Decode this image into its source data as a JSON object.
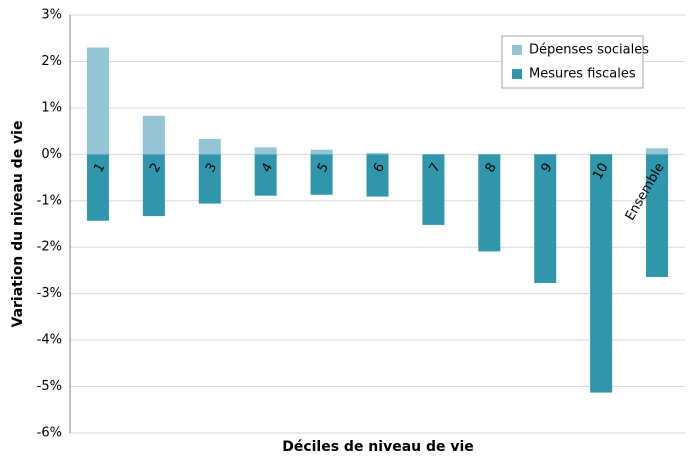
{
  "chart_data": {
    "type": "bar",
    "x_label": "Déciles de niveau de vie",
    "y_label": "Variation du niveau de vie",
    "categories": [
      "1",
      "2",
      "3",
      "4",
      "5",
      "6",
      "7",
      "8",
      "9",
      "10",
      "Ensemble"
    ],
    "series": [
      {
        "name": "Dépenses sociales",
        "color": "#93c5d6",
        "values": [
          2.3,
          0.83,
          0.33,
          0.15,
          0.1,
          0.03,
          0,
          0,
          0,
          0,
          0.13
        ]
      },
      {
        "name": "Mesures fiscales",
        "color": "#2f96ac",
        "values": [
          -1.43,
          -1.33,
          -1.06,
          -0.89,
          -0.87,
          -0.91,
          -1.52,
          -2.09,
          -2.77,
          -5.13,
          -2.64
        ]
      }
    ],
    "ylim": [
      -6,
      3
    ],
    "yticks": [
      {
        "value": -6,
        "label": "-6%"
      },
      {
        "value": -5,
        "label": "-5%"
      },
      {
        "value": -4,
        "label": "-4%"
      },
      {
        "value": -3,
        "label": "-3%"
      },
      {
        "value": -2,
        "label": "-2%"
      },
      {
        "value": -1,
        "label": "-1%"
      },
      {
        "value": 0,
        "label": "0%"
      },
      {
        "value": 1,
        "label": "1%"
      },
      {
        "value": 2,
        "label": "2%"
      },
      {
        "value": 3,
        "label": "3%"
      }
    ],
    "grid": true,
    "legend": "upper right"
  }
}
